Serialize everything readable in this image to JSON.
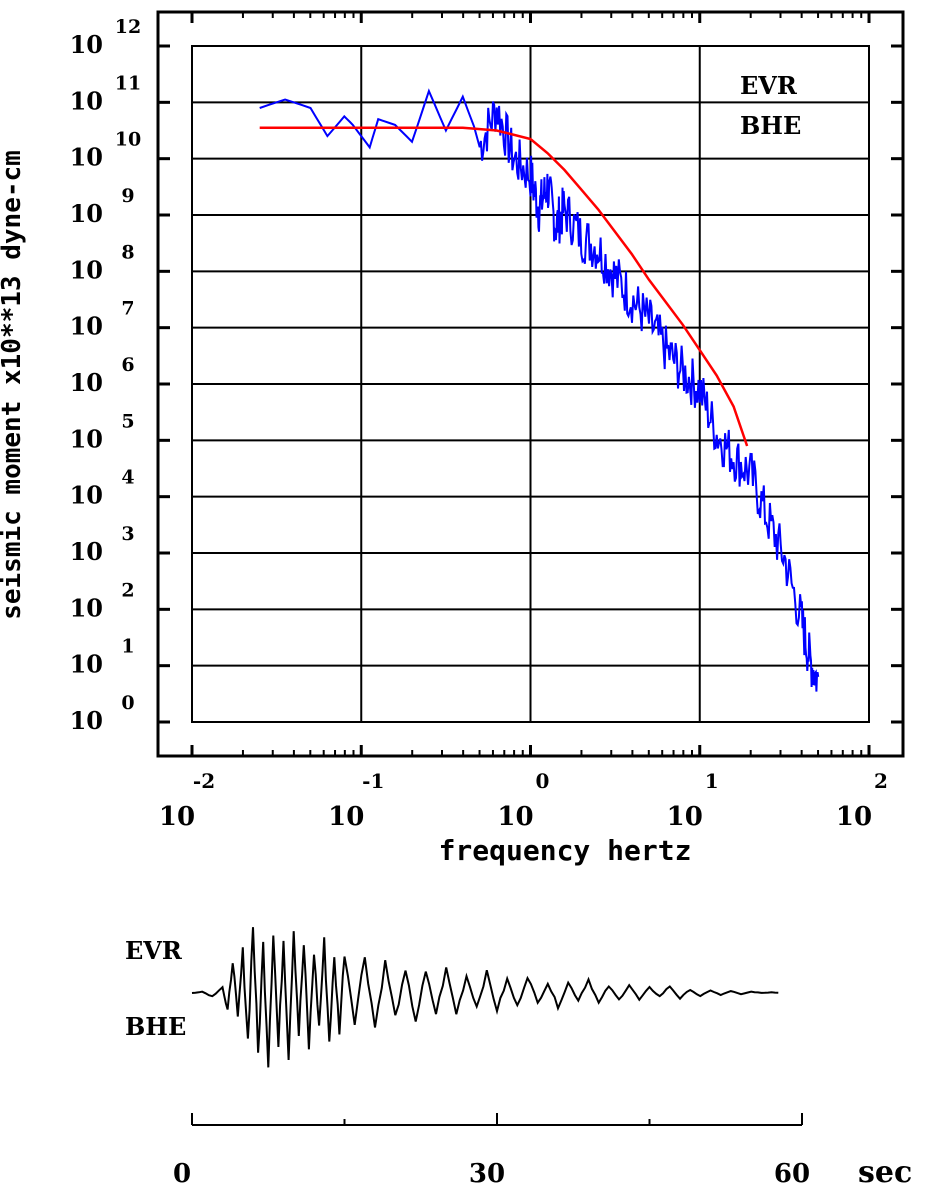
{
  "chart_data": [
    {
      "type": "line",
      "title": "",
      "ylabel": "seismic moment x10**13 dyne-cm",
      "xlabel": "frequency  hertz",
      "x_scale": "log",
      "y_scale": "log",
      "xlim": [
        -2,
        2
      ],
      "ylim": [
        0,
        12
      ],
      "x_tick_exponents": [
        "-2",
        "-1",
        "0",
        "1",
        "2"
      ],
      "x_tick_bases": [
        "10",
        "10",
        "10",
        "10",
        "10"
      ],
      "y_tick_exponents": [
        "12",
        "11",
        "10",
        "9",
        "8",
        "7",
        "6",
        "5",
        "4",
        "3",
        "2",
        "1",
        "0"
      ],
      "y_tick_bases": [
        "10",
        "10",
        "10",
        "10",
        "10",
        "10",
        "10",
        "10",
        "10",
        "10",
        "10",
        "10",
        "10"
      ],
      "grid": true,
      "annotation": [
        "EVR",
        "BHE"
      ],
      "series": [
        {
          "style": "observed spectrum",
          "color": "#0000ff",
          "log_points": [
            [
              -1.6,
              10.9
            ],
            [
              -1.45,
              11.05
            ],
            [
              -1.3,
              10.9
            ],
            [
              -1.2,
              10.4
            ],
            [
              -1.1,
              10.75
            ],
            [
              -1.05,
              10.6
            ],
            [
              -0.95,
              10.2
            ],
            [
              -0.9,
              10.7
            ],
            [
              -0.8,
              10.6
            ],
            [
              -0.7,
              10.3
            ],
            [
              -0.6,
              11.2
            ],
            [
              -0.5,
              10.5
            ],
            [
              -0.4,
              11.1
            ],
            [
              -0.3,
              10.3
            ],
            [
              -0.2,
              11.0
            ],
            [
              -0.1,
              10.1
            ],
            [
              0.0,
              9.8
            ],
            [
              0.05,
              9.2
            ],
            [
              0.1,
              9.6
            ],
            [
              0.15,
              8.9
            ],
            [
              0.2,
              9.2
            ],
            [
              0.3,
              8.7
            ],
            [
              0.4,
              8.5
            ],
            [
              0.5,
              8.0
            ],
            [
              0.6,
              7.6
            ],
            [
              0.7,
              7.2
            ],
            [
              0.8,
              6.7
            ],
            [
              0.9,
              6.3
            ],
            [
              1.0,
              6.0
            ],
            [
              1.1,
              5.2
            ],
            [
              1.2,
              4.8
            ],
            [
              1.3,
              4.5
            ],
            [
              1.4,
              3.7
            ],
            [
              1.5,
              3.0
            ],
            [
              1.6,
              1.9
            ],
            [
              1.65,
              1.2
            ],
            [
              1.7,
              0.8
            ]
          ]
        },
        {
          "style": "model fit",
          "color": "#ff0000",
          "log_points": [
            [
              -1.6,
              10.55
            ],
            [
              -1.2,
              10.55
            ],
            [
              -0.8,
              10.55
            ],
            [
              -0.4,
              10.55
            ],
            [
              -0.2,
              10.5
            ],
            [
              0.0,
              10.35
            ],
            [
              0.1,
              10.1
            ],
            [
              0.2,
              9.8
            ],
            [
              0.3,
              9.45
            ],
            [
              0.4,
              9.1
            ],
            [
              0.5,
              8.7
            ],
            [
              0.6,
              8.3
            ],
            [
              0.7,
              7.85
            ],
            [
              0.8,
              7.45
            ],
            [
              0.9,
              7.05
            ],
            [
              1.0,
              6.6
            ],
            [
              1.1,
              6.15
            ],
            [
              1.2,
              5.6
            ],
            [
              1.28,
              4.9
            ]
          ]
        }
      ]
    },
    {
      "type": "line",
      "title": "",
      "annotation": [
        "EVR",
        "BHE"
      ],
      "xlim": [
        0,
        60
      ],
      "x_tick_labels": [
        "0",
        "30",
        "60"
      ],
      "x_unit": "sec",
      "series": [
        {
          "style": "seismogram trace",
          "color": "#000000",
          "t": [
            0,
            1,
            2,
            3,
            3.5,
            4,
            4.5,
            5,
            5.5,
            6,
            6.5,
            7,
            7.5,
            8,
            8.5,
            9,
            9.5,
            10,
            10.5,
            11,
            11.5,
            12,
            12.5,
            13,
            13.5,
            14,
            14.5,
            15,
            16,
            17,
            18,
            19,
            20,
            21,
            22,
            23,
            24,
            25,
            26,
            27,
            28,
            29,
            30,
            31,
            32,
            33,
            34,
            35,
            36,
            37,
            38,
            39,
            40,
            41,
            42,
            43,
            44,
            45,
            46,
            47,
            48,
            49,
            50,
            51,
            52,
            53,
            54,
            55,
            56,
            57,
            58,
            59,
            60
          ],
          "amp": [
            0,
            0.02,
            -0.05,
            0.1,
            -0.3,
            0.5,
            -0.4,
            0.6,
            -0.7,
            1.0,
            -0.9,
            0.7,
            -1.0,
            0.9,
            -0.8,
            0.8,
            -0.9,
            0.95,
            -0.6,
            0.7,
            -0.8,
            0.6,
            -0.5,
            0.75,
            -0.7,
            0.5,
            -0.55,
            0.6,
            -0.4,
            0.55,
            -0.5,
            0.45,
            -0.35,
            0.3,
            -0.4,
            0.3,
            -0.3,
            0.35,
            -0.3,
            0.25,
            -0.2,
            0.3,
            -0.25,
            0.2,
            -0.2,
            0.25,
            -0.15,
            0.15,
            -0.2,
            0.15,
            -0.1,
            0.2,
            -0.15,
            0.1,
            -0.1,
            0.12,
            -0.1,
            0.08,
            -0.05,
            0.1,
            -0.08,
            0.05,
            -0.05,
            0.04,
            -0.03,
            0.03,
            -0.02,
            0.02,
            0,
            0.01,
            0
          ]
        }
      ]
    }
  ]
}
